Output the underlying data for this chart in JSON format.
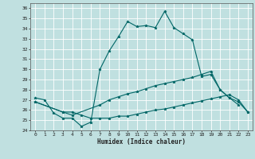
{
  "xlabel": "Humidex (Indice chaleur)",
  "bg_color": "#c0e0e0",
  "line_color": "#006666",
  "grid_color": "#ffffff",
  "xlim": [
    -0.5,
    23.5
  ],
  "ylim": [
    24,
    36.5
  ],
  "yticks": [
    24,
    25,
    26,
    27,
    28,
    29,
    30,
    31,
    32,
    33,
    34,
    35,
    36
  ],
  "xticks": [
    0,
    1,
    2,
    3,
    4,
    5,
    6,
    7,
    8,
    9,
    10,
    11,
    12,
    13,
    14,
    15,
    16,
    17,
    18,
    19,
    20,
    21,
    22,
    23
  ],
  "line1_x": [
    0,
    1,
    2,
    3,
    4,
    5,
    6,
    7,
    8,
    9,
    10,
    11,
    12,
    13,
    14,
    15,
    16,
    17,
    18,
    19,
    20,
    21,
    22
  ],
  "line1_y": [
    27.2,
    27.0,
    25.7,
    25.2,
    25.2,
    24.4,
    24.8,
    30.0,
    31.8,
    33.2,
    34.7,
    34.2,
    34.3,
    34.1,
    35.7,
    34.1,
    33.5,
    32.9,
    29.3,
    29.5,
    28.0,
    27.2,
    26.5
  ],
  "line2_x": [
    0,
    3,
    4,
    5,
    6,
    7,
    8,
    9,
    10,
    11,
    12,
    13,
    14,
    15,
    16,
    17,
    18,
    19,
    20,
    21,
    22,
    23
  ],
  "line2_y": [
    26.8,
    25.8,
    25.8,
    25.5,
    25.2,
    25.2,
    25.2,
    25.4,
    25.4,
    25.6,
    25.8,
    26.0,
    26.1,
    26.3,
    26.5,
    26.7,
    26.9,
    27.1,
    27.3,
    27.5,
    27.0,
    25.8
  ],
  "line3_x": [
    0,
    3,
    4,
    7,
    8,
    9,
    10,
    11,
    12,
    13,
    14,
    15,
    16,
    17,
    18,
    19,
    20,
    21,
    22,
    23
  ],
  "line3_y": [
    26.8,
    25.8,
    25.5,
    26.5,
    27.0,
    27.3,
    27.6,
    27.8,
    28.1,
    28.4,
    28.6,
    28.8,
    29.0,
    29.2,
    29.5,
    29.8,
    28.0,
    27.2,
    26.8,
    25.8
  ]
}
